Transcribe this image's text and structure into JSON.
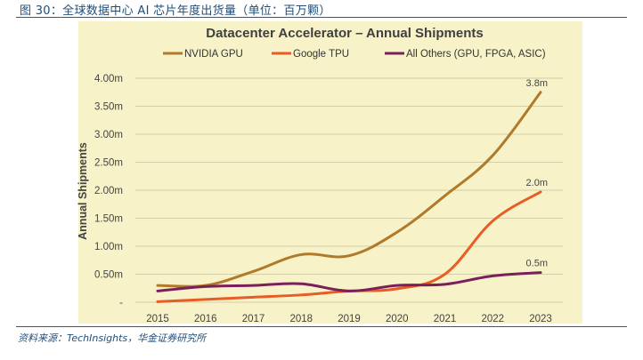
{
  "caption": "图 30：全球数据中心 AI 芯片年度出货量（单位：百万颗）",
  "source": "资料来源：TechInsights，华金证券研究所",
  "chart_data": {
    "type": "line",
    "title": "Datacenter Accelerator – Annual Shipments",
    "ylabel": "Annual Shipments",
    "xlabel": "",
    "x": [
      2015,
      2016,
      2017,
      2018,
      2019,
      2020,
      2021,
      2022,
      2023
    ],
    "ylim": [
      0,
      4.0
    ],
    "yticks": [
      0,
      0.5,
      1.0,
      1.5,
      2.0,
      2.5,
      3.0,
      3.5,
      4.0
    ],
    "ytick_labels": [
      "-",
      "0.50m",
      "1.00m",
      "1.50m",
      "2.00m",
      "2.50m",
      "3.00m",
      "3.50m",
      "4.00m"
    ],
    "grid": true,
    "legend_position": "top",
    "background": "#f7f2c8",
    "series": [
      {
        "name": "NVIDIA GPU",
        "color": "#b07a2a",
        "values": [
          0.3,
          0.3,
          0.55,
          0.85,
          0.83,
          1.25,
          1.9,
          2.62,
          3.75
        ],
        "end_label": "3.8m"
      },
      {
        "name": "Google TPU",
        "color": "#e85c26",
        "values": [
          0.01,
          0.05,
          0.09,
          0.13,
          0.2,
          0.24,
          0.5,
          1.45,
          1.97
        ],
        "end_label": "2.0m"
      },
      {
        "name": "All Others (GPU, FPGA, ASIC)",
        "color": "#7b1f5a",
        "values": [
          0.2,
          0.28,
          0.3,
          0.33,
          0.2,
          0.3,
          0.32,
          0.47,
          0.53
        ],
        "end_label": "0.5m"
      }
    ]
  }
}
